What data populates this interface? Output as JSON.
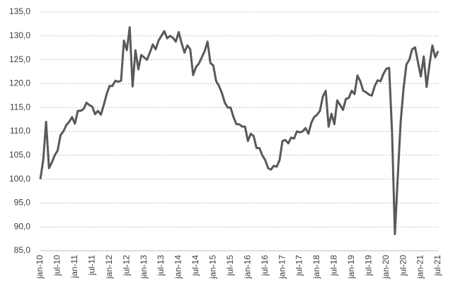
{
  "chart_data": {
    "type": "line",
    "categories": [
      "jan-10",
      null,
      null,
      null,
      null,
      null,
      "jul-10",
      null,
      null,
      null,
      null,
      null,
      "jan-11",
      null,
      null,
      null,
      null,
      null,
      "jul-11",
      null,
      null,
      null,
      null,
      null,
      "jan-12",
      null,
      null,
      null,
      null,
      null,
      "jul-12",
      null,
      null,
      null,
      null,
      null,
      "jan-13",
      null,
      null,
      null,
      null,
      null,
      "jul-13",
      null,
      null,
      null,
      null,
      null,
      "jan-14",
      null,
      null,
      null,
      null,
      null,
      "jul-14",
      null,
      null,
      null,
      null,
      null,
      "jan-15",
      null,
      null,
      null,
      null,
      null,
      "jul-15",
      null,
      null,
      null,
      null,
      null,
      "jan-16",
      null,
      null,
      null,
      null,
      null,
      "jul-16",
      null,
      null,
      null,
      null,
      null,
      "jan-17",
      null,
      null,
      null,
      null,
      null,
      "jul-17",
      null,
      null,
      null,
      null,
      null,
      "jan-18",
      null,
      null,
      null,
      null,
      null,
      "jul-18",
      null,
      null,
      null,
      null,
      null,
      "jan-19",
      null,
      null,
      null,
      null,
      null,
      "jul-19",
      null,
      null,
      null,
      null,
      null,
      "jan-20",
      null,
      null,
      null,
      null,
      null,
      "jul-20",
      null,
      null,
      null,
      null,
      null,
      "jan-21",
      null,
      null,
      null,
      null,
      null,
      "jul-21"
    ],
    "values": [
      100,
      104,
      112,
      102.3,
      103.5,
      105,
      106,
      109.2,
      110,
      111.3,
      112,
      113,
      111.6,
      114.3,
      114.3,
      114.7,
      116,
      115.5,
      115.2,
      113.6,
      114.3,
      113.5,
      115.5,
      117.8,
      119.5,
      119.5,
      120.6,
      120.4,
      120.6,
      129,
      127,
      131.8,
      119.4,
      127,
      123,
      126,
      125.5,
      125,
      126.5,
      128.2,
      127.2,
      129,
      130,
      131,
      129.5,
      130,
      129.6,
      128.8,
      130.8,
      128.5,
      126.5,
      128,
      127.2,
      121.8,
      123.5,
      124.2,
      125.5,
      126.8,
      128.8,
      124.3,
      123.8,
      120.5,
      119.5,
      118,
      116,
      115,
      115,
      113,
      111.5,
      111.5,
      111,
      111,
      108,
      109.5,
      109,
      106.5,
      106.5,
      105,
      104,
      102.3,
      102,
      102.8,
      102.6,
      104,
      108,
      108.2,
      107.5,
      108.7,
      108.5,
      110,
      109.8,
      110,
      110.7,
      109.5,
      111.8,
      113,
      113.5,
      114.3,
      117.3,
      118.5,
      111,
      113.7,
      111.5,
      116.5,
      115.5,
      114.5,
      116.8,
      117,
      118.5,
      117.8,
      121.7,
      120.5,
      118.5,
      118.2,
      117.7,
      117.5,
      119.5,
      120.7,
      120.5,
      122,
      123.1,
      123.3,
      110,
      88.5,
      100.5,
      112,
      119,
      124,
      125,
      127.2,
      127.6,
      124.5,
      121.5,
      125.7,
      119.3,
      124,
      128,
      125.5,
      126.8
    ],
    "color": "#595959",
    "ylim": [
      85,
      135
    ],
    "yticks": [
      {
        "value": 85,
        "label": "85,0"
      },
      {
        "value": 90,
        "label": "90,0"
      },
      {
        "value": 95,
        "label": "95,0"
      },
      {
        "value": 100,
        "label": "100,0"
      },
      {
        "value": 105,
        "label": "105,0"
      },
      {
        "value": 110,
        "label": "110,0"
      },
      {
        "value": 115,
        "label": "115,0"
      },
      {
        "value": 120,
        "label": "120,0"
      },
      {
        "value": 125,
        "label": "125,0"
      },
      {
        "value": 130,
        "label": "130,0"
      },
      {
        "value": 135,
        "label": "135,0"
      }
    ],
    "grid": true
  }
}
